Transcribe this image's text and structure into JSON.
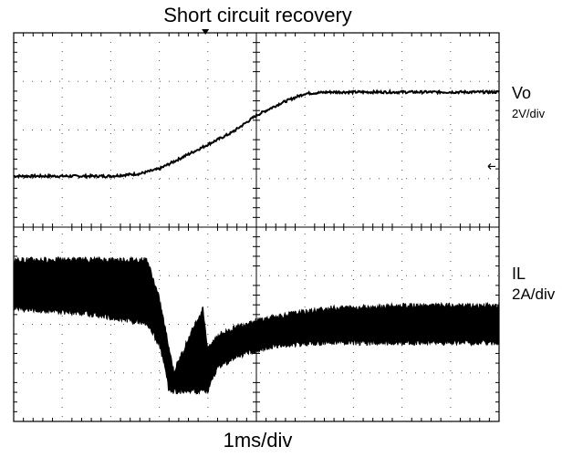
{
  "chart_data": {
    "type": "line",
    "title": "Short circuit recovery",
    "xlabel": "1ms/div",
    "grid": true,
    "x_divisions": 10,
    "y_divisions": 8,
    "xlim": [
      0,
      10
    ],
    "ylim": [
      0,
      8
    ],
    "time_per_div": "1ms/div",
    "series": [
      {
        "name": "Vo",
        "scale": "2V/div",
        "trace_color": "#000000",
        "points": [
          [
            0,
            5.05
          ],
          [
            2,
            5.05
          ],
          [
            2.6,
            5.1
          ],
          [
            3,
            5.2
          ],
          [
            3.5,
            5.45
          ],
          [
            4,
            5.7
          ],
          [
            4.5,
            5.95
          ],
          [
            5,
            6.3
          ],
          [
            5.5,
            6.55
          ],
          [
            6,
            6.75
          ],
          [
            6.5,
            6.78
          ],
          [
            10,
            6.78
          ]
        ]
      },
      {
        "name": "IL",
        "scale": "2A/div",
        "trace_color": "#000000",
        "envelope_upper": [
          [
            0,
            3.3
          ],
          [
            1.5,
            3.3
          ],
          [
            2.75,
            3.3
          ],
          [
            3.0,
            2.5
          ],
          [
            3.3,
            1.0
          ],
          [
            3.7,
            1.9
          ],
          [
            3.9,
            2.3
          ],
          [
            4.0,
            1.45
          ],
          [
            4.2,
            1.75
          ],
          [
            4.8,
            2.0
          ],
          [
            5.5,
            2.15
          ],
          [
            6.5,
            2.3
          ],
          [
            8,
            2.35
          ],
          [
            10,
            2.35
          ]
        ],
        "envelope_lower": [
          [
            0,
            2.35
          ],
          [
            1.5,
            2.25
          ],
          [
            2.75,
            2.05
          ],
          [
            3.0,
            1.6
          ],
          [
            3.1,
            1.2
          ],
          [
            3.2,
            0.65
          ],
          [
            3.8,
            0.65
          ],
          [
            4.0,
            0.65
          ],
          [
            4.2,
            1.15
          ],
          [
            4.8,
            1.45
          ],
          [
            5.5,
            1.6
          ],
          [
            6.5,
            1.65
          ],
          [
            8,
            1.65
          ],
          [
            10,
            1.65
          ]
        ]
      }
    ]
  },
  "labels": {
    "vo_name": "Vo",
    "vo_scale": "2V/div",
    "il_name": "IL",
    "il_scale": "2A/div"
  }
}
